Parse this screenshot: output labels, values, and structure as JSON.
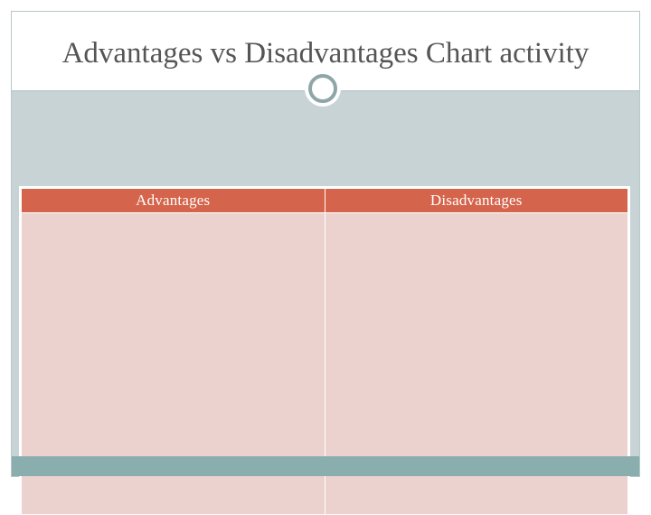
{
  "slide": {
    "title": "Advantages vs Disadvantages Chart activity"
  },
  "table": {
    "columns": [
      "Advantages",
      "Disadvantages"
    ],
    "rows": [
      [
        "",
        ""
      ]
    ]
  },
  "colors": {
    "header_fill": "#d4644b",
    "cell_fill": "#ecd2ce",
    "body_background": "#c8d3d5",
    "footer_band": "#8aadad",
    "title_text": "#555555"
  }
}
